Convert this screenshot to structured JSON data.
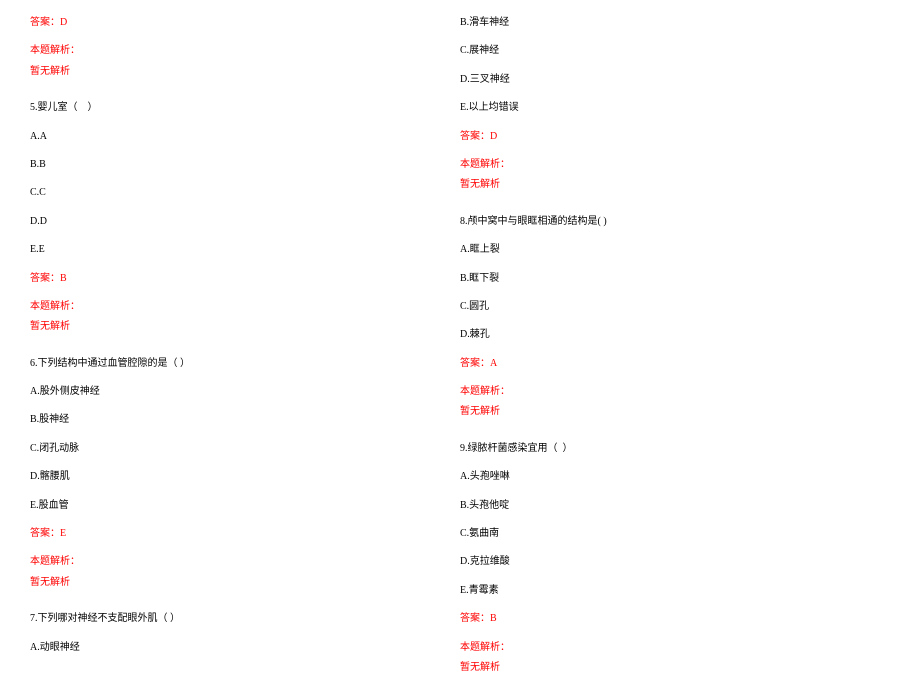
{
  "text_color": "#000000",
  "accent_color": "#ff0000",
  "background_color": "#ffffff",
  "col1": {
    "ans_prev": "答案：D",
    "explain_label_prev": "本题解析：",
    "explain_text_prev": "暂无解析",
    "q5": {
      "stem": "5.婴儿室（    ）",
      "a": "A.A",
      "b": "B.B",
      "c": "C.C",
      "d": "D.D",
      "e": "E.E",
      "answer": "答案：B",
      "explain_label": "本题解析：",
      "explain_text": "暂无解析"
    },
    "q6": {
      "stem": "6.下列结构中通过血管腔隙的是（ ）",
      "a": "A.股外侧皮神经",
      "b": "B.股神经",
      "c": "C.闭孔动脉",
      "d": "D.髂腰肌",
      "e": "E.股血管",
      "answer": "答案：E",
      "explain_label": "本题解析：",
      "explain_text": "暂无解析"
    },
    "q7": {
      "stem": "7.下列哪对神经不支配眼外肌（ ）",
      "a": "A.动眼神经"
    }
  },
  "col2": {
    "q7cont": {
      "b": "B.滑车神经",
      "c": "C.展神经",
      "d": "D.三叉神经",
      "e": "E.以上均错误",
      "answer": "答案：D",
      "explain_label": "本题解析：",
      "explain_text": "暂无解析"
    },
    "q8": {
      "stem": "8.颅中窝中与眼眶相通的结构是( )",
      "a": "A.眶上裂",
      "b": "B.眶下裂",
      "c": "C.圆孔",
      "d": "D.棘孔",
      "answer": "答案：A",
      "explain_label": "本题解析：",
      "explain_text": "暂无解析"
    },
    "q9": {
      "stem": "9.绿脓杆菌感染宜用（  ）",
      "a": "A.头孢唑啉",
      "b": "B.头孢他啶",
      "c": "C.氨曲南",
      "d": "D.克拉维酸",
      "e": "E.青霉素",
      "answer": "答案：B",
      "explain_label": "本题解析：",
      "explain_text": "暂无解析"
    }
  }
}
